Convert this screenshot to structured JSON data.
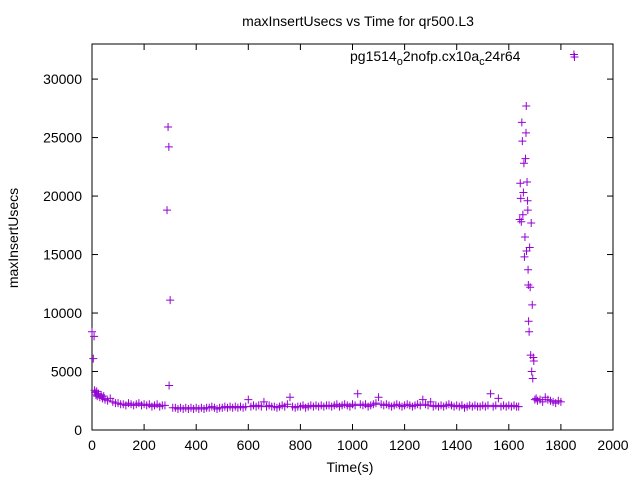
{
  "chart_data": {
    "type": "scatter",
    "title": "maxInsertUsecs vs Time for qr500.L3",
    "xlabel": "Time(s)",
    "ylabel": "maxInsertUsecs",
    "xlim": [
      0,
      2000
    ],
    "ylim": [
      0,
      33000
    ],
    "xticks": [
      0,
      200,
      400,
      600,
      800,
      1000,
      1200,
      1400,
      1600,
      1800,
      2000
    ],
    "yticks": [
      0,
      5000,
      10000,
      15000,
      20000,
      25000,
      30000
    ],
    "grid": false,
    "legend_position": "top-right",
    "colors": {
      "series": "#9400d3",
      "axis": "#000000"
    },
    "series": [
      {
        "name": "pg1514_o2nofp.cx10a_c24r64",
        "legend_parts": {
          "main": "pg1514",
          "sub1": "o",
          "mid": "2nofp.cx10a",
          "sub2": "c",
          "end": "24r64"
        },
        "points": [
          [
            0,
            8400
          ],
          [
            5,
            6100
          ],
          [
            8,
            8000
          ],
          [
            10,
            3400
          ],
          [
            12,
            3200
          ],
          [
            15,
            3000
          ],
          [
            18,
            3300
          ],
          [
            20,
            2900
          ],
          [
            25,
            3100
          ],
          [
            30,
            2800
          ],
          [
            35,
            3000
          ],
          [
            40,
            2700
          ],
          [
            45,
            2900
          ],
          [
            50,
            2600
          ],
          [
            60,
            2500
          ],
          [
            70,
            2700
          ],
          [
            80,
            2400
          ],
          [
            90,
            2300
          ],
          [
            100,
            2300
          ],
          [
            110,
            2200
          ],
          [
            120,
            2200
          ],
          [
            130,
            2100
          ],
          [
            140,
            2300
          ],
          [
            150,
            2200
          ],
          [
            160,
            2100
          ],
          [
            170,
            2200
          ],
          [
            180,
            2300
          ],
          [
            190,
            2100
          ],
          [
            200,
            2200
          ],
          [
            210,
            2100
          ],
          [
            220,
            2200
          ],
          [
            230,
            2000
          ],
          [
            240,
            2100
          ],
          [
            250,
            2200
          ],
          [
            260,
            2000
          ],
          [
            270,
            2100
          ],
          [
            280,
            2100
          ],
          [
            288,
            18800
          ],
          [
            292,
            25900
          ],
          [
            295,
            24200
          ],
          [
            300,
            11100
          ],
          [
            296,
            3800
          ],
          [
            310,
            1900
          ],
          [
            320,
            1900
          ],
          [
            330,
            1800
          ],
          [
            340,
            1900
          ],
          [
            350,
            1800
          ],
          [
            360,
            1900
          ],
          [
            370,
            1800
          ],
          [
            380,
            1900
          ],
          [
            390,
            1800
          ],
          [
            400,
            1900
          ],
          [
            410,
            1800
          ],
          [
            420,
            1900
          ],
          [
            430,
            1800
          ],
          [
            440,
            1900
          ],
          [
            450,
            1900
          ],
          [
            460,
            2000
          ],
          [
            470,
            1900
          ],
          [
            480,
            1800
          ],
          [
            490,
            1900
          ],
          [
            500,
            1900
          ],
          [
            510,
            2000
          ],
          [
            520,
            1900
          ],
          [
            530,
            2000
          ],
          [
            540,
            1900
          ],
          [
            550,
            2000
          ],
          [
            560,
            1900
          ],
          [
            570,
            2000
          ],
          [
            580,
            1900
          ],
          [
            590,
            2000
          ],
          [
            600,
            2600
          ],
          [
            610,
            2000
          ],
          [
            620,
            2100
          ],
          [
            630,
            2000
          ],
          [
            640,
            2100
          ],
          [
            650,
            2000
          ],
          [
            660,
            2400
          ],
          [
            670,
            2000
          ],
          [
            680,
            2100
          ],
          [
            690,
            2000
          ],
          [
            700,
            2000
          ],
          [
            710,
            1900
          ],
          [
            720,
            2000
          ],
          [
            730,
            2100
          ],
          [
            740,
            2000
          ],
          [
            750,
            2200
          ],
          [
            760,
            2800
          ],
          [
            770,
            2000
          ],
          [
            780,
            1900
          ],
          [
            790,
            2000
          ],
          [
            800,
            2000
          ],
          [
            810,
            2100
          ],
          [
            820,
            1900
          ],
          [
            830,
            2000
          ],
          [
            840,
            2100
          ],
          [
            850,
            2000
          ],
          [
            860,
            2100
          ],
          [
            870,
            2000
          ],
          [
            880,
            2100
          ],
          [
            890,
            2000
          ],
          [
            900,
            2100
          ],
          [
            910,
            2100
          ],
          [
            920,
            2000
          ],
          [
            930,
            2100
          ],
          [
            940,
            2200
          ],
          [
            950,
            2000
          ],
          [
            960,
            2100
          ],
          [
            970,
            2200
          ],
          [
            980,
            2100
          ],
          [
            990,
            2000
          ],
          [
            1000,
            2200
          ],
          [
            1010,
            2100
          ],
          [
            1020,
            3100
          ],
          [
            1030,
            2200
          ],
          [
            1040,
            2100
          ],
          [
            1050,
            2200
          ],
          [
            1060,
            2000
          ],
          [
            1070,
            2100
          ],
          [
            1080,
            2200
          ],
          [
            1090,
            2300
          ],
          [
            1100,
            2800
          ],
          [
            1110,
            2200
          ],
          [
            1120,
            2100
          ],
          [
            1130,
            2200
          ],
          [
            1140,
            2100
          ],
          [
            1150,
            2000
          ],
          [
            1160,
            2100
          ],
          [
            1170,
            2200
          ],
          [
            1180,
            2100
          ],
          [
            1190,
            2000
          ],
          [
            1200,
            2100
          ],
          [
            1210,
            2200
          ],
          [
            1220,
            2100
          ],
          [
            1230,
            2000
          ],
          [
            1240,
            2100
          ],
          [
            1250,
            2200
          ],
          [
            1260,
            2100
          ],
          [
            1270,
            2600
          ],
          [
            1280,
            2200
          ],
          [
            1290,
            2100
          ],
          [
            1300,
            2400
          ],
          [
            1310,
            2000
          ],
          [
            1320,
            2100
          ],
          [
            1330,
            2000
          ],
          [
            1340,
            2100
          ],
          [
            1350,
            2000
          ],
          [
            1360,
            2100
          ],
          [
            1370,
            2200
          ],
          [
            1380,
            2100
          ],
          [
            1390,
            2000
          ],
          [
            1400,
            2100
          ],
          [
            1410,
            2000
          ],
          [
            1420,
            2100
          ],
          [
            1430,
            1900
          ],
          [
            1440,
            2000
          ],
          [
            1450,
            2100
          ],
          [
            1460,
            2000
          ],
          [
            1470,
            2100
          ],
          [
            1480,
            2000
          ],
          [
            1490,
            2000
          ],
          [
            1500,
            2100
          ],
          [
            1510,
            2000
          ],
          [
            1520,
            2100
          ],
          [
            1530,
            3100
          ],
          [
            1540,
            2000
          ],
          [
            1550,
            2100
          ],
          [
            1560,
            2700
          ],
          [
            1570,
            2000
          ],
          [
            1580,
            2100
          ],
          [
            1590,
            2000
          ],
          [
            1600,
            2100
          ],
          [
            1610,
            2000
          ],
          [
            1620,
            2100
          ],
          [
            1630,
            2000
          ],
          [
            1638,
            2000
          ],
          [
            1642,
            18000
          ],
          [
            1644,
            21100
          ],
          [
            1646,
            19800
          ],
          [
            1648,
            17800
          ],
          [
            1650,
            26300
          ],
          [
            1652,
            24700
          ],
          [
            1654,
            18400
          ],
          [
            1656,
            20300
          ],
          [
            1658,
            22800
          ],
          [
            1660,
            14800
          ],
          [
            1662,
            16500
          ],
          [
            1664,
            23200
          ],
          [
            1666,
            25400
          ],
          [
            1667,
            27700
          ],
          [
            1668,
            15300
          ],
          [
            1670,
            21200
          ],
          [
            1672,
            19600
          ],
          [
            1673,
            18800
          ],
          [
            1674,
            13700
          ],
          [
            1675,
            12400
          ],
          [
            1676,
            9300
          ],
          [
            1678,
            8400
          ],
          [
            1680,
            15600
          ],
          [
            1682,
            12200
          ],
          [
            1684,
            6400
          ],
          [
            1686,
            17700
          ],
          [
            1688,
            5000
          ],
          [
            1690,
            10700
          ],
          [
            1692,
            4400
          ],
          [
            1694,
            6200
          ],
          [
            1696,
            5900
          ],
          [
            1700,
            2600
          ],
          [
            1705,
            2700
          ],
          [
            1710,
            2500
          ],
          [
            1720,
            2600
          ],
          [
            1730,
            2400
          ],
          [
            1740,
            2800
          ],
          [
            1750,
            2600
          ],
          [
            1760,
            2500
          ],
          [
            1770,
            2400
          ],
          [
            1780,
            2300
          ],
          [
            1790,
            2500
          ],
          [
            1800,
            2400
          ],
          [
            1850,
            32100
          ]
        ]
      }
    ]
  }
}
